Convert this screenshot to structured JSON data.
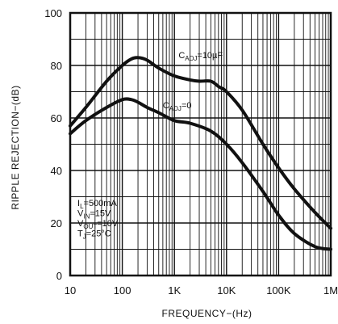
{
  "chart_data": {
    "type": "line",
    "title": "",
    "xlabel": "FREQUENCY−(Hz)",
    "ylabel": "RIPPLE REJECTION−(dB)",
    "x_scale": "log",
    "xlim": [
      10,
      1000000
    ],
    "ylim": [
      0,
      100
    ],
    "x_ticks": [
      {
        "value": 10,
        "label": "10"
      },
      {
        "value": 100,
        "label": "100"
      },
      {
        "value": 1000,
        "label": "1K"
      },
      {
        "value": 10000,
        "label": "10K"
      },
      {
        "value": 100000,
        "label": "100K"
      },
      {
        "value": 1000000,
        "label": "1M"
      }
    ],
    "y_ticks": [
      0,
      20,
      40,
      60,
      80,
      100
    ],
    "grid": "on",
    "series": [
      {
        "name": "CADJ=10µF",
        "label_parts": {
          "main": "C",
          "sub": "ADJ",
          "rest": "=10µF"
        },
        "x": [
          10,
          20,
          50,
          100,
          150,
          200,
          300,
          500,
          1000,
          2000,
          3000,
          5000,
          7000,
          10000,
          20000,
          50000,
          100000,
          200000,
          500000,
          1000000
        ],
        "y": [
          57,
          64,
          74,
          80,
          82.5,
          83,
          82,
          79,
          76,
          74.5,
          74,
          74,
          72,
          70,
          63,
          50,
          41,
          33,
          24,
          18
        ]
      },
      {
        "name": "CADJ=0",
        "label_parts": {
          "main": "C",
          "sub": "ADJ",
          "rest": "=0"
        },
        "x": [
          10,
          20,
          50,
          100,
          150,
          200,
          300,
          500,
          1000,
          2000,
          5000,
          10000,
          20000,
          50000,
          100000,
          200000,
          500000,
          1000000
        ],
        "y": [
          54,
          59,
          64,
          67,
          67,
          66,
          64,
          62,
          59,
          58,
          55,
          50,
          43,
          32,
          23,
          16,
          11,
          10
        ]
      }
    ],
    "conditions": [
      {
        "main": "I",
        "sub": "L",
        "rest": "=500mA"
      },
      {
        "main": "V",
        "sub": "IN",
        "rest": "=15V"
      },
      {
        "main": "V",
        "sub": "OUT",
        "rest": "=10V"
      },
      {
        "main": "T",
        "sub": "J",
        "rest": "=25°C"
      }
    ]
  }
}
